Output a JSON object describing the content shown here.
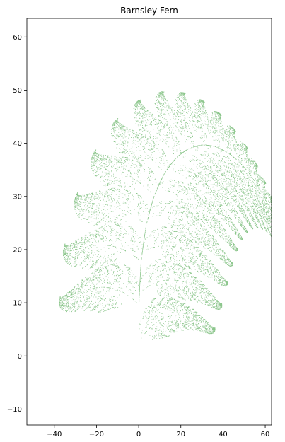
{
  "chart_data": {
    "type": "scatter",
    "title": "Barnsley Fern",
    "xlabel": "",
    "ylabel": "",
    "xlim": [
      -53,
      63
    ],
    "ylim": [
      -13,
      63.5
    ],
    "xticks": [
      -40,
      -20,
      0,
      20,
      40,
      60
    ],
    "xtick_labels": [
      "−40",
      "−20",
      "0",
      "20",
      "40",
      "60"
    ],
    "yticks": [
      -10,
      0,
      10,
      20,
      30,
      40,
      50,
      60
    ],
    "ytick_labels": [
      "−10",
      "0",
      "10",
      "20",
      "30",
      "40",
      "50",
      "60"
    ],
    "grid": false,
    "legend": "none",
    "series": [
      {
        "color": "#008000",
        "marker_opacity": 0.45,
        "ifs": {
          "description_of_generation": "iterated function system, 4 affine maps",
          "maps": [
            {
              "a": 0.0,
              "b": 0.0,
              "c": 0.0,
              "d": 0.16,
              "e": 0.0,
              "f": 0.0,
              "p": 0.01
            },
            {
              "a": 0.85,
              "b": 0.04,
              "c": -0.04,
              "d": 0.85,
              "e": 0.0,
              "f": 1.6,
              "p": 0.85
            },
            {
              "a": 0.2,
              "b": -0.26,
              "c": 0.23,
              "d": 0.22,
              "e": 0.0,
              "f": 1.6,
              "p": 0.07
            },
            {
              "a": -0.15,
              "b": 0.28,
              "c": 0.26,
              "d": 0.24,
              "e": 0.0,
              "f": 0.44,
              "p": 0.07
            }
          ],
          "scale": 6.0,
          "twist_degrees": 0.0
        }
      }
    ]
  }
}
